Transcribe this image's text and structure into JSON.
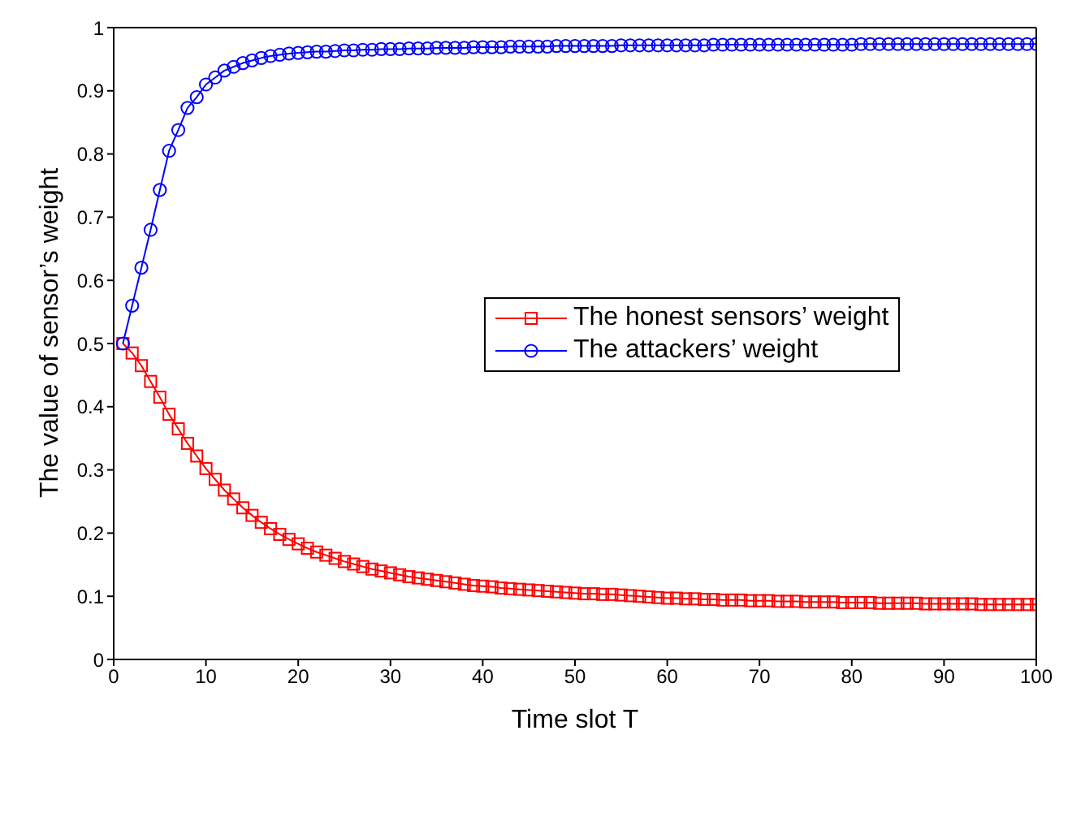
{
  "chart_data": {
    "type": "line",
    "xlabel": "Time slot T",
    "ylabel": "The value of sensor’s weight",
    "x": [
      1,
      2,
      3,
      4,
      5,
      6,
      7,
      8,
      9,
      10,
      11,
      12,
      13,
      14,
      15,
      16,
      17,
      18,
      19,
      20,
      21,
      22,
      23,
      24,
      25,
      26,
      27,
      28,
      29,
      30,
      31,
      32,
      33,
      34,
      35,
      36,
      37,
      38,
      39,
      40,
      41,
      42,
      43,
      44,
      45,
      46,
      47,
      48,
      49,
      50,
      51,
      52,
      53,
      54,
      55,
      56,
      57,
      58,
      59,
      60,
      61,
      62,
      63,
      64,
      65,
      66,
      67,
      68,
      69,
      70,
      71,
      72,
      73,
      74,
      75,
      76,
      77,
      78,
      79,
      80,
      81,
      82,
      83,
      84,
      85,
      86,
      87,
      88,
      89,
      90,
      91,
      92,
      93,
      94,
      95,
      96,
      97,
      98,
      99,
      100
    ],
    "series": [
      {
        "name": "The honest sensors’ weight",
        "color": "#ff0000",
        "marker": "square",
        "values": [
          0.5,
          0.485,
          0.465,
          0.44,
          0.415,
          0.388,
          0.365,
          0.342,
          0.322,
          0.302,
          0.285,
          0.268,
          0.254,
          0.24,
          0.228,
          0.217,
          0.207,
          0.198,
          0.19,
          0.183,
          0.176,
          0.17,
          0.165,
          0.16,
          0.155,
          0.151,
          0.147,
          0.143,
          0.14,
          0.137,
          0.134,
          0.131,
          0.129,
          0.127,
          0.125,
          0.123,
          0.121,
          0.119,
          0.117,
          0.116,
          0.115,
          0.113,
          0.112,
          0.111,
          0.11,
          0.109,
          0.108,
          0.107,
          0.106,
          0.105,
          0.104,
          0.104,
          0.103,
          0.103,
          0.102,
          0.101,
          0.1,
          0.099,
          0.098,
          0.097,
          0.097,
          0.096,
          0.096,
          0.095,
          0.095,
          0.094,
          0.094,
          0.094,
          0.093,
          0.093,
          0.093,
          0.092,
          0.092,
          0.092,
          0.091,
          0.091,
          0.091,
          0.091,
          0.09,
          0.09,
          0.09,
          0.09,
          0.089,
          0.089,
          0.089,
          0.089,
          0.089,
          0.088,
          0.088,
          0.088,
          0.088,
          0.088,
          0.088,
          0.087,
          0.087,
          0.087,
          0.087,
          0.087,
          0.087,
          0.087
        ]
      },
      {
        "name": "The attackers’ weight",
        "color": "#0000ff",
        "marker": "circle",
        "values": [
          0.5,
          0.56,
          0.62,
          0.68,
          0.743,
          0.805,
          0.838,
          0.873,
          0.89,
          0.91,
          0.921,
          0.932,
          0.938,
          0.944,
          0.948,
          0.952,
          0.955,
          0.957,
          0.959,
          0.96,
          0.961,
          0.962,
          0.962,
          0.963,
          0.964,
          0.964,
          0.965,
          0.965,
          0.966,
          0.966,
          0.966,
          0.967,
          0.967,
          0.967,
          0.968,
          0.968,
          0.968,
          0.968,
          0.969,
          0.969,
          0.969,
          0.969,
          0.97,
          0.97,
          0.97,
          0.97,
          0.97,
          0.971,
          0.971,
          0.971,
          0.971,
          0.971,
          0.971,
          0.971,
          0.972,
          0.972,
          0.972,
          0.972,
          0.972,
          0.972,
          0.972,
          0.972,
          0.972,
          0.972,
          0.973,
          0.973,
          0.973,
          0.973,
          0.973,
          0.973,
          0.973,
          0.973,
          0.973,
          0.973,
          0.973,
          0.973,
          0.973,
          0.973,
          0.973,
          0.973,
          0.974,
          0.974,
          0.974,
          0.974,
          0.974,
          0.974,
          0.974,
          0.974,
          0.974,
          0.974,
          0.974,
          0.974,
          0.974,
          0.974,
          0.974,
          0.974,
          0.974,
          0.974,
          0.974,
          0.974
        ]
      }
    ],
    "xlim": [
      0,
      100
    ],
    "xticks": [
      0,
      10,
      20,
      30,
      40,
      50,
      60,
      70,
      80,
      90,
      100
    ],
    "ylim": [
      0,
      1
    ],
    "yticks": [
      0,
      0.1,
      0.2,
      0.3,
      0.4,
      0.5,
      0.6,
      0.7,
      0.8,
      0.9,
      1
    ],
    "grid": false,
    "legend": "right",
    "line_style": "solid"
  }
}
